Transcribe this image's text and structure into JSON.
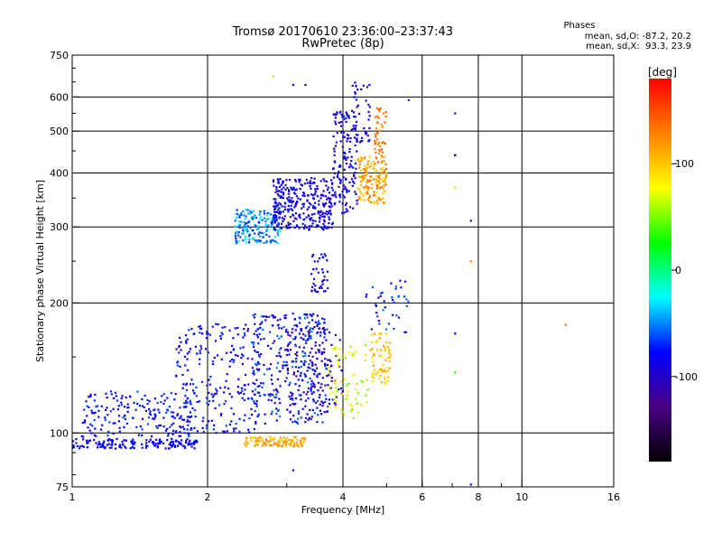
{
  "chart_data": {
    "type": "scatter",
    "title": "Tromsø 20170610 23:36:00–23:37:43",
    "subtitle": "RwPretec (8p)",
    "xlabel": "Frequency [MHz]",
    "ylabel": "Stationary phase Virtual Height [km]",
    "x_scale": "log",
    "y_scale": "log",
    "xlim": [
      1,
      16
    ],
    "ylim": [
      75,
      750
    ],
    "x_ticks": [
      1,
      2,
      4,
      6,
      8,
      10,
      16
    ],
    "x_tick_labels": [
      "1",
      "2",
      "4",
      "6",
      "8",
      "10",
      "16"
    ],
    "y_ticks": [
      75,
      100,
      200,
      300,
      400,
      500,
      600,
      750
    ],
    "y_tick_labels": [
      "75",
      "100",
      "200",
      "300",
      "400",
      "500",
      "600",
      "750"
    ],
    "grid": true,
    "phase_info": {
      "title": "Phases",
      "line_o": "mean, sd,O: -87.2, 20.2",
      "line_x": "mean, sd,X:  93.3, 23.9"
    },
    "colorbar": {
      "label": "[deg]",
      "range": [
        -180,
        180
      ],
      "ticks": [
        100,
        0,
        -100
      ],
      "tick_labels": [
        "100",
        "0",
        "-100"
      ],
      "stops": [
        "#000000",
        "#4b0082",
        "#0000ff",
        "#00ffff",
        "#00ff00",
        "#ffff00",
        "#ff8000",
        "#ff0000"
      ]
    },
    "clusters": [
      {
        "x": [
          1.0,
          1.9
        ],
        "y": [
          92,
          97
        ],
        "phase": [
          -90,
          -70
        ],
        "n": 160
      },
      {
        "x": [
          1.05,
          1.9
        ],
        "y": [
          98,
          125
        ],
        "phase": [
          -95,
          -60
        ],
        "n": 190
      },
      {
        "x": [
          1.7,
          2.6
        ],
        "y": [
          100,
          180
        ],
        "phase": [
          -100,
          -60
        ],
        "n": 230
      },
      {
        "x": [
          2.5,
          3.7
        ],
        "y": [
          105,
          190
        ],
        "phase": [
          -110,
          -50
        ],
        "n": 340
      },
      {
        "x": [
          3.0,
          4.0
        ],
        "y": [
          115,
          175
        ],
        "phase": [
          -130,
          -80
        ],
        "n": 110
      },
      {
        "x": [
          3.7,
          4.6
        ],
        "y": [
          108,
          160
        ],
        "phase": [
          40,
          100
        ],
        "n": 70
      },
      {
        "x": [
          4.6,
          5.1
        ],
        "y": [
          130,
          170
        ],
        "phase": [
          80,
          120
        ],
        "n": 70
      },
      {
        "x": [
          2.4,
          3.3
        ],
        "y": [
          93,
          98
        ],
        "phase": [
          95,
          130
        ],
        "n": 110
      },
      {
        "x": [
          3.4,
          3.7
        ],
        "y": [
          212,
          260
        ],
        "phase": [
          -110,
          -70
        ],
        "n": 40
      },
      {
        "x": [
          4.5,
          5.6
        ],
        "y": [
          170,
          230
        ],
        "phase": [
          -100,
          -50
        ],
        "n": 40
      },
      {
        "x": [
          2.3,
          2.9
        ],
        "y": [
          275,
          330
        ],
        "phase": [
          -80,
          -20
        ],
        "n": 170
      },
      {
        "x": [
          2.8,
          3.8
        ],
        "y": [
          295,
          390
        ],
        "phase": [
          -110,
          -70
        ],
        "n": 310
      },
      {
        "x": [
          3.8,
          4.3
        ],
        "y": [
          320,
          560
        ],
        "phase": [
          -110,
          -70
        ],
        "n": 140
      },
      {
        "x": [
          4.2,
          4.6
        ],
        "y": [
          470,
          650
        ],
        "phase": [
          -110,
          -70
        ],
        "n": 45
      },
      {
        "x": [
          4.3,
          5.0
        ],
        "y": [
          340,
          440
        ],
        "phase": [
          90,
          140
        ],
        "n": 160
      },
      {
        "x": [
          4.7,
          5.0
        ],
        "y": [
          440,
          580
        ],
        "phase": [
          120,
          150
        ],
        "n": 40
      }
    ],
    "points": [
      {
        "x": 7.1,
        "y": 550,
        "phase": -90
      },
      {
        "x": 7.1,
        "y": 440,
        "phase": -90
      },
      {
        "x": 7.1,
        "y": 440,
        "phase": -90
      },
      {
        "x": 7.1,
        "y": 370,
        "phase": 60
      },
      {
        "x": 7.1,
        "y": 170,
        "phase": -90
      },
      {
        "x": 7.1,
        "y": 138,
        "phase": 30
      },
      {
        "x": 7.7,
        "y": 310,
        "phase": -90
      },
      {
        "x": 7.7,
        "y": 250,
        "phase": 130
      },
      {
        "x": 7.7,
        "y": 76,
        "phase": -90
      },
      {
        "x": 5.6,
        "y": 590,
        "phase": -70
      },
      {
        "x": 12.5,
        "y": 178,
        "phase": 140
      },
      {
        "x": 3.1,
        "y": 640,
        "phase": -90
      },
      {
        "x": 3.3,
        "y": 640,
        "phase": -140
      },
      {
        "x": 2.8,
        "y": 670,
        "phase": 100
      },
      {
        "x": 3.1,
        "y": 82,
        "phase": -90
      }
    ]
  }
}
